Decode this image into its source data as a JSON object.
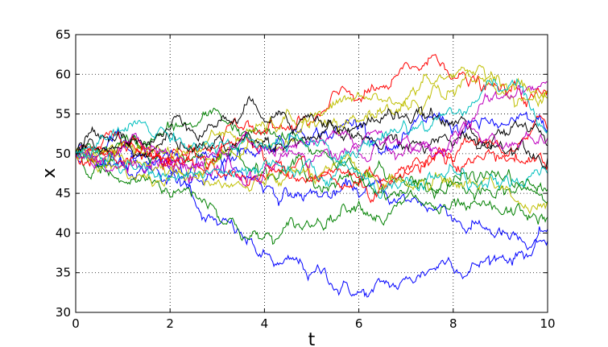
{
  "chart_data": {
    "type": "line",
    "title": "",
    "xlabel": "t",
    "ylabel": "x",
    "xlim": [
      0,
      10
    ],
    "ylim": [
      30,
      65
    ],
    "xticks": [
      0,
      2,
      4,
      6,
      8,
      10
    ],
    "yticks": [
      30,
      35,
      40,
      45,
      50,
      55,
      60,
      65
    ],
    "x_tick_labels": [
      "0",
      "2",
      "4",
      "6",
      "8",
      "10"
    ],
    "y_tick_labels": [
      "30",
      "35",
      "40",
      "45",
      "50",
      "55",
      "60",
      "65"
    ],
    "grid": true,
    "grid_style": "dotted",
    "legend": "none",
    "x": [
      0,
      1,
      2,
      3,
      4,
      5,
      6,
      7,
      8,
      9,
      10
    ],
    "series": [
      {
        "color": "#0000ff",
        "values": [
          50,
          48.5,
          47,
          41,
          37.5,
          35,
          32.5,
          34.5,
          35.5,
          37,
          40.5
        ]
      },
      {
        "color": "#0000ff",
        "values": [
          50,
          48.5,
          48,
          47,
          45.5,
          45,
          44.5,
          44,
          41.5,
          40,
          39
        ]
      },
      {
        "color": "#0000ff",
        "values": [
          50,
          51.5,
          50,
          49.5,
          50.5,
          52,
          53.5,
          52.5,
          53,
          53.5,
          53
        ]
      },
      {
        "color": "#008000",
        "values": [
          50,
          46.5,
          44.5,
          42,
          39.5,
          41,
          44,
          44.5,
          44,
          42.5,
          42
        ]
      },
      {
        "color": "#008000",
        "values": [
          50,
          52,
          53.5,
          55.5,
          52.5,
          50,
          47,
          46,
          46,
          45.5,
          44
        ]
      },
      {
        "color": "#008000",
        "values": [
          50,
          51,
          49,
          49.5,
          48,
          47,
          46.5,
          45,
          46.5,
          47,
          45.5
        ]
      },
      {
        "color": "#ff0000",
        "values": [
          50,
          51,
          49,
          50,
          53,
          54,
          57,
          61.5,
          59.5,
          58,
          58
        ]
      },
      {
        "color": "#ff0000",
        "values": [
          50,
          51.5,
          49.5,
          51,
          49,
          47,
          46,
          47.5,
          49,
          50.5,
          53
        ]
      },
      {
        "color": "#ff0000",
        "values": [
          50,
          49,
          48.5,
          47.5,
          47,
          46.5,
          47,
          48,
          48.5,
          49.5,
          48.5
        ]
      },
      {
        "color": "#bfbf00",
        "values": [
          50,
          49,
          47,
          49,
          51,
          55,
          57.5,
          56,
          58,
          58.5,
          57.5
        ]
      },
      {
        "color": "#bfbf00",
        "values": [
          50,
          51.5,
          50,
          52.5,
          53.5,
          54,
          54,
          57,
          60,
          57.5,
          57
        ]
      },
      {
        "color": "#bfbf00",
        "values": [
          50,
          49.5,
          48,
          46.5,
          46,
          47.5,
          48,
          46.5,
          46,
          45.5,
          44
        ]
      },
      {
        "color": "#000000",
        "values": [
          50,
          52.5,
          53,
          53.5,
          54,
          55,
          53.5,
          55,
          53.5,
          52.5,
          51
        ]
      },
      {
        "color": "#000000",
        "values": [
          50,
          51,
          52.5,
          52,
          51.5,
          52,
          52.5,
          51,
          51,
          51.5,
          49.5
        ]
      },
      {
        "color": "#bf00bf",
        "values": [
          50,
          51,
          49.5,
          50,
          50.5,
          51.5,
          51,
          52,
          52.5,
          57,
          59
        ]
      },
      {
        "color": "#bf00bf",
        "values": [
          50,
          49,
          48.5,
          48.5,
          48,
          49,
          50,
          51,
          51.5,
          51,
          52
        ]
      },
      {
        "color": "#00bfbf",
        "values": [
          50,
          53,
          51.5,
          50.5,
          51,
          51.5,
          50.5,
          53.5,
          55,
          58,
          53
        ]
      },
      {
        "color": "#00bfbf",
        "values": [
          50,
          48,
          47,
          48,
          49,
          48.5,
          47.5,
          47,
          48,
          46,
          47.5
        ]
      }
    ]
  }
}
